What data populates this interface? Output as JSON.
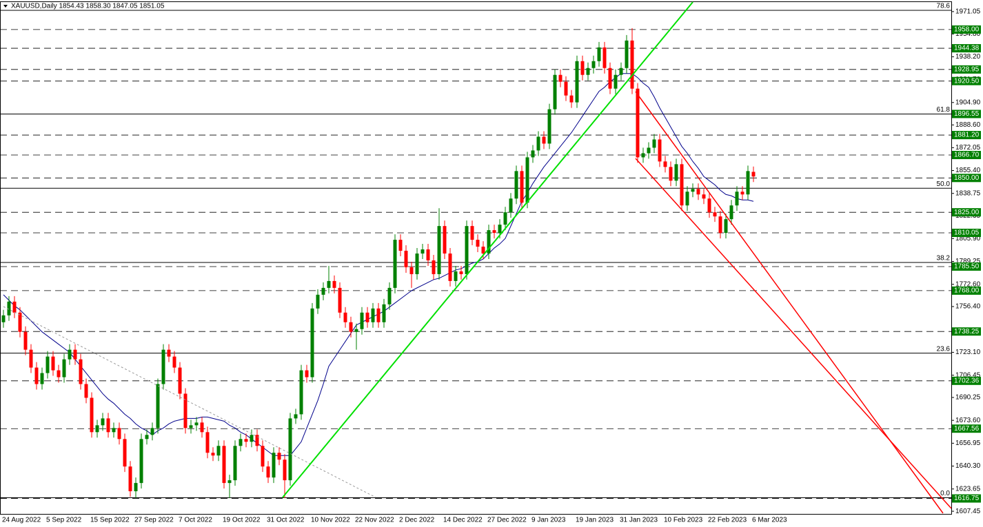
{
  "chart_data": {
    "type": "candlestick",
    "title": "XAUUSD,Daily  1854.43 1858.30 1847.05 1851.05",
    "ylim": [
      1605.5,
      1978.5
    ],
    "yticks": [
      1607.45,
      1623.65,
      {
        "value": 1640.3,
        "label": "1640.30"
      },
      1656.95,
      {
        "value": 1673.6,
        "label": "1673.60"
      },
      1690.25,
      1706.45,
      {
        "value": 1723.1,
        "label": "1723.10"
      },
      {
        "value": 1756.4,
        "label": "1756.40"
      },
      {
        "value": 1772.6,
        "label": "1772.60"
      },
      1789.25,
      {
        "value": 1805.9,
        "label": "1805.90"
      },
      1822.35,
      1838.75,
      {
        "value": 1855.4,
        "label": "1855.40"
      },
      1872.05,
      {
        "value": 1888.6,
        "label": "1888.60"
      },
      {
        "value": 1904.9,
        "label": "1904.90"
      },
      {
        "value": 1921.7,
        "label": "1921.70"
      },
      {
        "value": 1938.2,
        "label": "1938.20"
      },
      {
        "value": 1954.8,
        "label": "1954.80"
      },
      1971.05
    ],
    "up_color": "#008000",
    "down_color": "#ff0000",
    "level_color": "#008000",
    "levels": [
      {
        "value": 1958,
        "label": "1958.00"
      },
      1944.38,
      1928.95,
      {
        "value": 1920.5,
        "label": "1920.50"
      },
      1896.55,
      {
        "value": 1881.2,
        "label": "1881.20"
      },
      {
        "value": 1866.7,
        "label": "1866.70"
      },
      {
        "value": 1850,
        "label": "1850.00"
      },
      {
        "value": 1825,
        "label": "1825.00"
      },
      1810.05,
      {
        "value": 1785.5,
        "label": "1785.50"
      },
      {
        "value": 1768,
        "label": "1768.00"
      },
      1738.25,
      1702.36,
      1667.56,
      1616.75
    ],
    "fib_levels": [
      {
        "label": "78.6",
        "price": 1972
      },
      {
        "label": "61.8",
        "price": 1896.55
      },
      {
        "label": "50.0",
        "price": 1842.5
      },
      {
        "label": "38.2",
        "price": 1788.5
      },
      {
        "label": "23.6",
        "price": 1722.5
      },
      {
        "label": "0.0",
        "price": 1617.3
      }
    ],
    "categories": [
      "24 Aug 2022",
      null,
      null,
      null,
      null,
      null,
      null,
      null,
      "5 Sep 2022",
      null,
      null,
      null,
      null,
      null,
      null,
      null,
      "15 Sep 2022",
      null,
      null,
      null,
      null,
      null,
      null,
      null,
      "27 Sep 2022",
      null,
      null,
      null,
      null,
      null,
      null,
      null,
      "7 Oct 2022",
      null,
      null,
      null,
      null,
      null,
      null,
      null,
      "19 Oct 2022",
      null,
      null,
      null,
      null,
      null,
      null,
      null,
      "31 Oct 2022",
      null,
      null,
      null,
      null,
      null,
      null,
      null,
      "10 Nov 2022",
      null,
      null,
      null,
      null,
      null,
      null,
      null,
      "22 Nov 2022",
      null,
      null,
      null,
      null,
      null,
      null,
      null,
      "2 Dec 2022",
      null,
      null,
      null,
      null,
      null,
      null,
      null,
      "14 Dec 2022",
      null,
      null,
      null,
      null,
      null,
      null,
      null,
      "27 Dec 2022",
      null,
      null,
      null,
      null,
      null,
      null,
      null,
      "9 Jan 2023",
      null,
      null,
      null,
      null,
      null,
      null,
      null,
      "19 Jan 2023",
      null,
      null,
      null,
      null,
      null,
      null,
      null,
      "31 Jan 2023",
      null,
      null,
      null,
      null,
      null,
      null,
      null,
      "10 Feb 2023",
      null,
      null,
      null,
      null,
      null,
      null,
      null,
      "22 Feb 2023",
      null,
      null,
      null,
      null,
      null,
      null,
      null,
      "6 Mar 2023"
    ],
    "open": [
      1745,
      1750,
      1760,
      1752,
      1738,
      1725,
      1712,
      1700,
      1708,
      1720,
      1710,
      1705,
      1718,
      1725,
      1718,
      1700,
      1690,
      1665,
      1670,
      1675,
      1665,
      1668,
      1660,
      1640,
      1622,
      1628,
      1660,
      1663,
      1668,
      1700,
      1725,
      1720,
      1712,
      1693,
      1668,
      1670,
      1672,
      1665,
      1650,
      1648,
      1655,
      1628,
      1630,
      1655,
      1660,
      1658,
      1663,
      1655,
      1640,
      1632,
      1650,
      1645,
      1630,
      1675,
      1678,
      1710,
      1705,
      1755,
      1765,
      1770,
      1775,
      1770,
      1752,
      1745,
      1738,
      1740,
      1752,
      1745,
      1755,
      1745,
      1758,
      1770,
      1805,
      1797,
      1785,
      1780,
      1795,
      1798,
      1790,
      1780,
      1815,
      1795,
      1775,
      1782,
      1780,
      1815,
      1805,
      1800,
      1795,
      1812,
      1810,
      1816,
      1825,
      1835,
      1855,
      1832,
      1865,
      1870,
      1880,
      1875,
      1900,
      1925,
      1920,
      1910,
      1905,
      1935,
      1925,
      1930,
      1935,
      1945,
      1930,
      1915,
      1925,
      1930,
      1950,
      1915,
      1865,
      1868,
      1872,
      1878,
      1862,
      1858,
      1848,
      1860,
      1830,
      1840,
      1842,
      1838,
      1835,
      1825,
      1822,
      1810,
      1820,
      1830,
      1840,
      1838,
      1854.43
    ],
    "high": [
      1754,
      1764,
      1764,
      1756,
      1742,
      1729,
      1716,
      1712,
      1724,
      1724,
      1714,
      1722,
      1729,
      1729,
      1722,
      1704,
      1694,
      1674,
      1679,
      1679,
      1672,
      1672,
      1664,
      1644,
      1632,
      1664,
      1667,
      1672,
      1704,
      1729,
      1729,
      1724,
      1716,
      1697,
      1674,
      1676,
      1676,
      1669,
      1654,
      1659,
      1659,
      1634,
      1659,
      1664,
      1664,
      1667,
      1667,
      1659,
      1644,
      1654,
      1654,
      1649,
      1679,
      1682,
      1714,
      1714,
      1759,
      1769,
      1774,
      1786,
      1779,
      1774,
      1756,
      1749,
      1744,
      1756,
      1756,
      1759,
      1759,
      1762,
      1774,
      1809,
      1809,
      1801,
      1789,
      1799,
      1802,
      1802,
      1794,
      1828,
      1819,
      1799,
      1786,
      1786,
      1819,
      1819,
      1809,
      1804,
      1816,
      1816,
      1820,
      1829,
      1839,
      1859,
      1859,
      1869,
      1874,
      1884,
      1884,
      1904,
      1929,
      1929,
      1924,
      1914,
      1939,
      1939,
      1934,
      1939,
      1949,
      1949,
      1934,
      1929,
      1934,
      1954,
      1959,
      1919,
      1872,
      1876,
      1882,
      1882,
      1866,
      1862,
      1864,
      1864,
      1844,
      1846,
      1846,
      1842,
      1839,
      1829,
      1826,
      1824,
      1834,
      1844,
      1844,
      1859,
      1858.3
    ],
    "low": [
      1741,
      1746,
      1748,
      1734,
      1721,
      1708,
      1696,
      1696,
      1704,
      1706,
      1701,
      1701,
      1714,
      1714,
      1696,
      1686,
      1661,
      1661,
      1666,
      1661,
      1661,
      1656,
      1636,
      1618,
      1617,
      1624,
      1656,
      1659,
      1664,
      1696,
      1716,
      1708,
      1689,
      1664,
      1664,
      1666,
      1661,
      1646,
      1644,
      1644,
      1624,
      1617,
      1626,
      1651,
      1654,
      1654,
      1651,
      1636,
      1628,
      1628,
      1641,
      1617,
      1626,
      1671,
      1674,
      1701,
      1701,
      1751,
      1761,
      1766,
      1766,
      1748,
      1741,
      1734,
      1725,
      1736,
      1741,
      1741,
      1741,
      1741,
      1754,
      1766,
      1793,
      1781,
      1770,
      1776,
      1791,
      1786,
      1776,
      1776,
      1791,
      1771,
      1771,
      1776,
      1776,
      1801,
      1796,
      1791,
      1791,
      1806,
      1806,
      1812,
      1821,
      1831,
      1828,
      1828,
      1861,
      1866,
      1871,
      1871,
      1896,
      1916,
      1906,
      1901,
      1901,
      1921,
      1921,
      1926,
      1931,
      1926,
      1911,
      1911,
      1921,
      1926,
      1911,
      1861,
      1861,
      1864,
      1868,
      1858,
      1854,
      1844,
      1844,
      1826,
      1826,
      1836,
      1834,
      1831,
      1821,
      1818,
      1806,
      1806,
      1816,
      1826,
      1834,
      1834,
      1847.05
    ],
    "close": [
      1750,
      1760,
      1752,
      1738,
      1725,
      1712,
      1700,
      1708,
      1720,
      1710,
      1705,
      1718,
      1725,
      1718,
      1700,
      1690,
      1665,
      1670,
      1675,
      1665,
      1668,
      1660,
      1640,
      1622,
      1628,
      1660,
      1663,
      1668,
      1700,
      1725,
      1720,
      1712,
      1693,
      1668,
      1670,
      1672,
      1665,
      1650,
      1648,
      1655,
      1628,
      1630,
      1655,
      1660,
      1658,
      1663,
      1655,
      1640,
      1632,
      1650,
      1645,
      1630,
      1675,
      1678,
      1710,
      1705,
      1755,
      1765,
      1770,
      1775,
      1770,
      1752,
      1745,
      1738,
      1740,
      1752,
      1745,
      1755,
      1745,
      1758,
      1770,
      1805,
      1797,
      1785,
      1780,
      1795,
      1798,
      1790,
      1780,
      1815,
      1795,
      1775,
      1782,
      1780,
      1815,
      1805,
      1800,
      1795,
      1812,
      1810,
      1816,
      1825,
      1835,
      1855,
      1832,
      1865,
      1870,
      1880,
      1875,
      1900,
      1925,
      1920,
      1910,
      1905,
      1935,
      1925,
      1930,
      1935,
      1945,
      1930,
      1915,
      1925,
      1930,
      1950,
      1915,
      1865,
      1868,
      1872,
      1878,
      1862,
      1858,
      1848,
      1860,
      1830,
      1840,
      1842,
      1838,
      1835,
      1825,
      1822,
      1810,
      1820,
      1830,
      1840,
      1838,
      1855,
      1851.05
    ],
    "series": [
      {
        "color": "#00008b",
        "values": [
          1765,
          1761,
          1757,
          1754,
          1750,
          1746,
          1742,
          1738,
          1735,
          1732,
          1729,
          1726,
          1723,
          1718,
          1713,
          1708,
          1703,
          1698,
          1693,
          1689,
          1686,
          1682,
          1678,
          1675,
          1671,
          1668,
          1666,
          1663,
          1666,
          1668,
          1671,
          1673,
          1674,
          1675,
          1675,
          1675,
          1676,
          1676,
          1675,
          1674,
          1673,
          1670,
          1668,
          1665,
          1663,
          1660,
          1657,
          1654,
          1651,
          1648,
          1648,
          1648,
          1648,
          1653,
          1658,
          1668,
          1678,
          1688,
          1700,
          1713,
          1719,
          1725,
          1731,
          1737,
          1743,
          1745,
          1747,
          1749,
          1751,
          1753,
          1756,
          1759,
          1762,
          1765,
          1768,
          1770,
          1772,
          1774,
          1776,
          1777,
          1779,
          1781,
          1783,
          1784,
          1786,
          1788,
          1789,
          1791,
          1795,
          1799,
          1802,
          1806,
          1815,
          1824,
          1833,
          1839,
          1846,
          1852,
          1858,
          1863,
          1868,
          1873,
          1878,
          1883,
          1889,
          1895,
          1901,
          1907,
          1913,
          1916,
          1920,
          1923,
          1926,
          1926,
          1926,
          1923,
          1919,
          1916,
          1909,
          1901,
          1894,
          1887,
          1880,
          1873,
          1868,
          1862,
          1857,
          1851,
          1848,
          1845,
          1841,
          1838,
          1837,
          1835,
          1834,
          1834,
          1833
        ]
      }
    ]
  }
}
